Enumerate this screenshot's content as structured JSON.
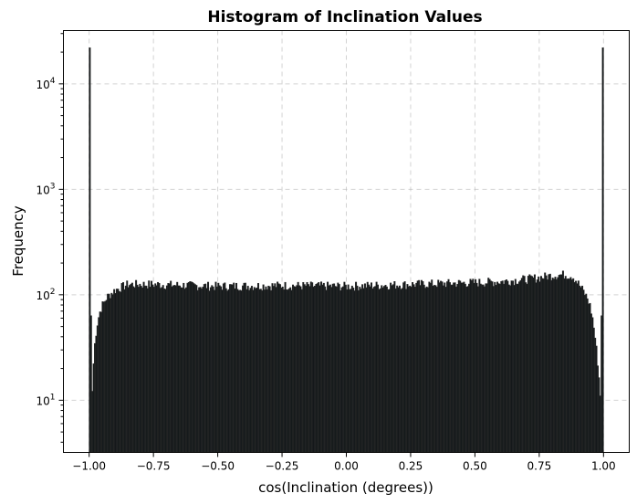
{
  "chart_data": {
    "type": "bar",
    "title": "Histogram of Inclination Values",
    "xlabel": "cos(Inclination (degrees))",
    "ylabel": "Frequency",
    "xlim": [
      -1.1,
      1.1
    ],
    "ylim": [
      3.2,
      32000
    ],
    "yscale": "log",
    "grid": true,
    "bar_color": "#0f1517",
    "xticks": [
      -1.0,
      -0.75,
      -0.5,
      -0.25,
      0.0,
      0.25,
      0.5,
      0.75,
      1.0
    ],
    "xtick_labels": [
      "−1.00",
      "−0.75",
      "−0.50",
      "−0.25",
      "0.00",
      "0.25",
      "0.50",
      "0.75",
      "1.00"
    ],
    "yticks": [
      10,
      100,
      1000,
      10000
    ],
    "ytick_labels": [
      {
        "base": "10",
        "exp": "1"
      },
      {
        "base": "10",
        "exp": "2"
      },
      {
        "base": "10",
        "exp": "3"
      },
      {
        "base": "10",
        "exp": "4"
      }
    ],
    "bins": {
      "x": [
        -1.0,
        -0.99,
        -0.98,
        -0.97,
        -0.96,
        -0.95,
        -0.93,
        -0.9,
        -0.85,
        -0.75,
        -0.5,
        -0.25,
        0.0,
        0.25,
        0.5,
        0.6,
        0.7,
        0.75,
        0.8,
        0.85,
        0.88,
        0.9,
        0.92,
        0.94,
        0.95,
        0.96,
        0.97,
        0.98,
        0.99,
        1.0
      ],
      "values": [
        22000,
        9,
        30,
        50,
        66,
        78,
        95,
        110,
        125,
        125,
        120,
        122,
        120,
        125,
        130,
        133,
        140,
        145,
        152,
        155,
        150,
        130,
        110,
        90,
        75,
        55,
        35,
        20,
        9,
        22000
      ]
    }
  }
}
